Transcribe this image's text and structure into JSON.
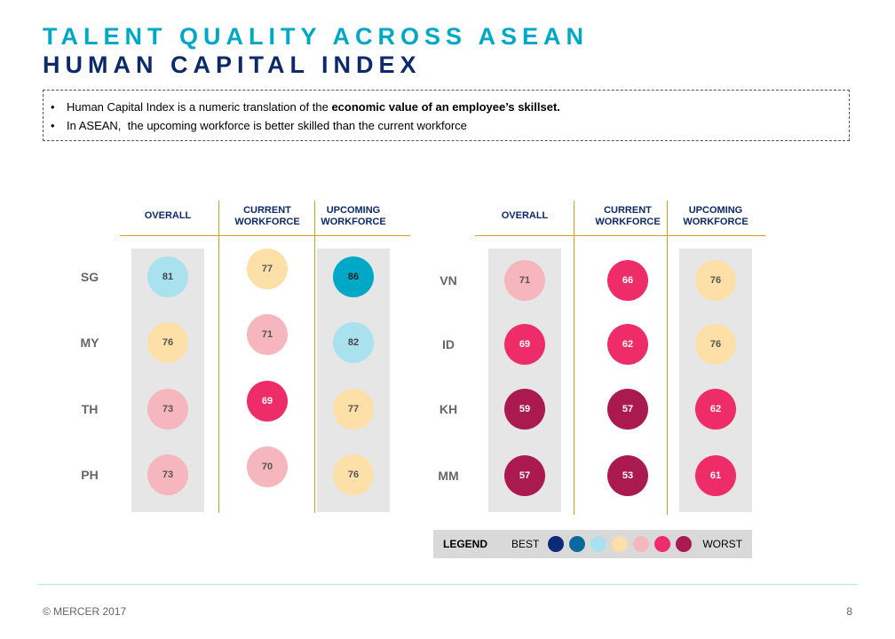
{
  "title_line1": "TALENT QUALITY ACROSS ASEAN",
  "title_line2": "HUMAN CAPITAL INDEX",
  "notes": {
    "bullet": "•",
    "line1_pre": "Human Capital Index is a numeric translation of the ",
    "line1_bold": "economic value of an employee’s skillset.",
    "line2": "In ASEAN,  the upcoming workforce is better skilled than the current workforce"
  },
  "headers": {
    "overall": "OVERALL",
    "current": "CURRENT\nWORKFORCE",
    "upcoming": "UPCOMING\nWORKFORCE"
  },
  "palette": {
    "best_dark": "#0c2a78",
    "best": "#0a6aa0",
    "teal": "#00a8c8",
    "light_blue": "#a9e1ef",
    "peach": "#fddfa8",
    "light_pink": "#f5b6bd",
    "pink": "#ee2c6a",
    "worst": "#ab1a4f"
  },
  "panels": [
    {
      "rows": [
        {
          "country": "SG",
          "overall": 81,
          "current": 77,
          "upcoming": 86
        },
        {
          "country": "MY",
          "overall": 76,
          "current": 71,
          "upcoming": 82
        },
        {
          "country": "TH",
          "overall": 73,
          "current": 69,
          "upcoming": 77
        },
        {
          "country": "PH",
          "overall": 73,
          "current": 70,
          "upcoming": 76
        }
      ]
    },
    {
      "rows": [
        {
          "country": "VN",
          "overall": 71,
          "current": 66,
          "upcoming": 76
        },
        {
          "country": "ID",
          "overall": 69,
          "current": 62,
          "upcoming": 76
        },
        {
          "country": "KH",
          "overall": 59,
          "current": 57,
          "upcoming": 62
        },
        {
          "country": "MM",
          "overall": 57,
          "current": 53,
          "upcoming": 61
        }
      ]
    }
  ],
  "legend": {
    "title": "LEGEND",
    "best_label": "BEST",
    "worst_label": "WORST",
    "colors": [
      "#0c2a78",
      "#0a6aa0",
      "#a9e1ef",
      "#fddfa8",
      "#f5b6bd",
      "#ee2c6a",
      "#ab1a4f"
    ]
  },
  "footer": {
    "copyright": "© MERCER  2017",
    "page": "8"
  }
}
